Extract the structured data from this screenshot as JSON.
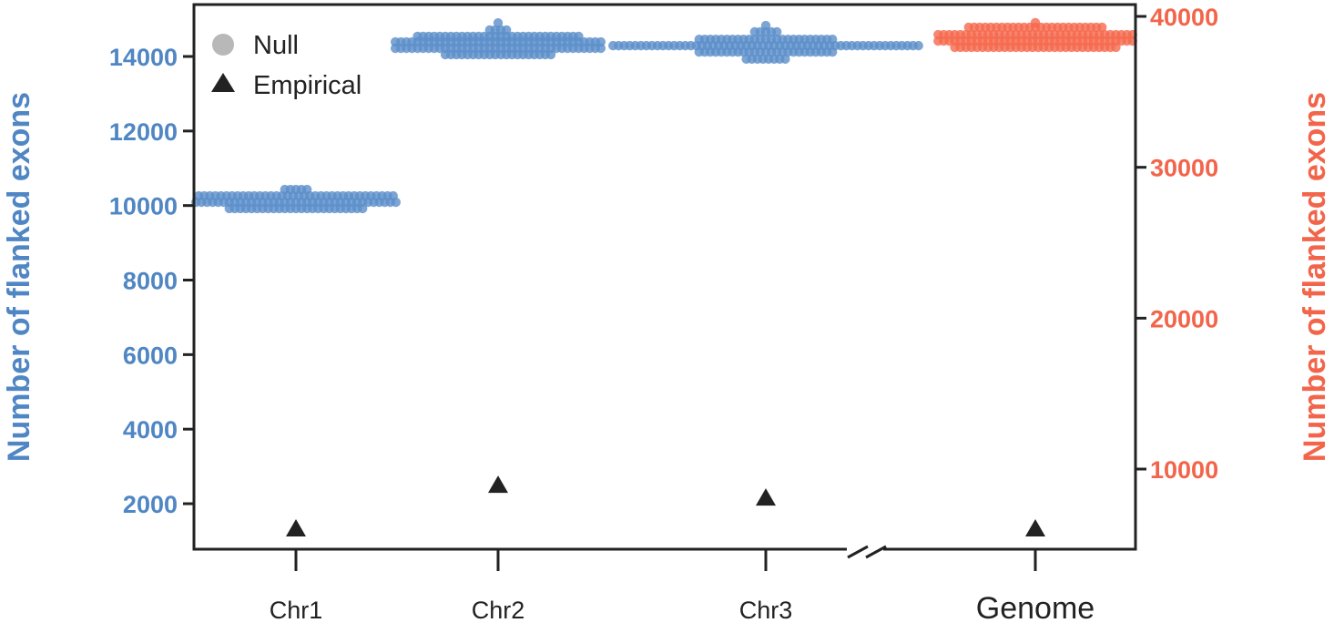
{
  "chart_data": {
    "type": "scatter",
    "subtype": "beeswarm",
    "categories": [
      "Chr1",
      "Chr2",
      "Chr3",
      "Genome"
    ],
    "left_axis": {
      "label": "Number of flanked exons",
      "ticks": [
        2000,
        4000,
        6000,
        8000,
        10000,
        12000,
        14000
      ],
      "range": [
        779,
        15393
      ],
      "color": "#4f86c3"
    },
    "right_axis": {
      "label": "Number of flanked exons",
      "ticks": [
        10000,
        20000,
        30000,
        40000
      ],
      "range": [
        4689,
        40785
      ],
      "color": "#f2654a"
    },
    "axis_break_between": [
      "Chr3",
      "Genome"
    ],
    "legend": {
      "position": "top-left",
      "entries": [
        {
          "label": "Null",
          "marker": "circle",
          "color": "#b8b8b8"
        },
        {
          "label": "Empirical",
          "marker": "triangle",
          "color": "#222222"
        }
      ]
    },
    "series": [
      {
        "name": "Chr1",
        "axis": "left",
        "color": "#5b8fc9",
        "empirical": 1340,
        "null_rows": [
          {
            "value": 10430,
            "count": 5
          },
          {
            "value": 10260,
            "count": 36
          },
          {
            "value": 10090,
            "count": 37
          },
          {
            "value": 9920,
            "count": 25
          }
        ]
      },
      {
        "name": "Chr2",
        "axis": "left",
        "color": "#5b8fc9",
        "empirical": 2510,
        "null_rows": [
          {
            "value": 14900,
            "count": 1
          },
          {
            "value": 14710,
            "count": 4
          },
          {
            "value": 14540,
            "count": 30
          },
          {
            "value": 14390,
            "count": 38
          },
          {
            "value": 14220,
            "count": 38
          },
          {
            "value": 14050,
            "count": 20
          }
        ]
      },
      {
        "name": "Chr3",
        "axis": "left",
        "color": "#5b8fc9",
        "empirical": 2170,
        "null_rows": [
          {
            "value": 14830,
            "count": 1
          },
          {
            "value": 14660,
            "count": 5
          },
          {
            "value": 14460,
            "count": 25
          },
          {
            "value": 14290,
            "count": 56
          },
          {
            "value": 14120,
            "count": 25
          },
          {
            "value": 13930,
            "count": 8
          }
        ]
      },
      {
        "name": "Genome",
        "axis": "right",
        "color": "#f5694d",
        "empirical": 6080,
        "null_rows": [
          {
            "value": 39580,
            "count": 1
          },
          {
            "value": 39280,
            "count": 25
          },
          {
            "value": 38790,
            "count": 36
          },
          {
            "value": 38370,
            "count": 36
          },
          {
            "value": 37950,
            "count": 30
          }
        ]
      }
    ]
  }
}
